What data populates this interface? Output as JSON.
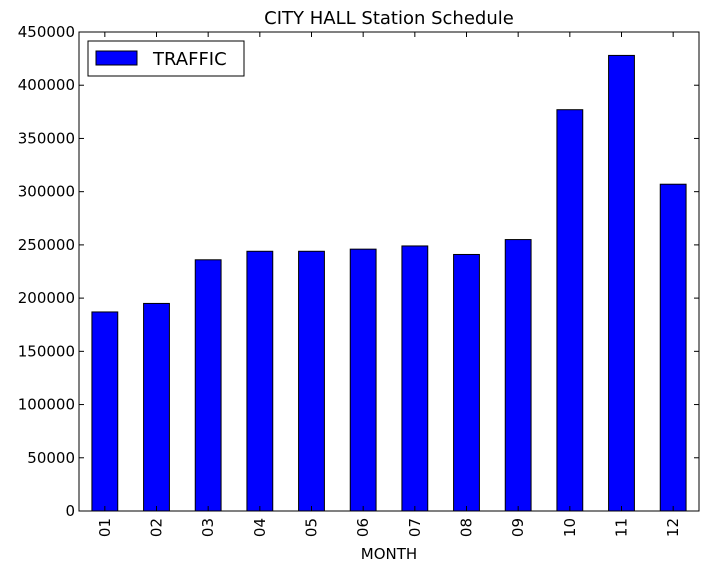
{
  "chart_data": {
    "type": "bar",
    "title": "CITY HALL Station Schedule",
    "xlabel": "MONTH",
    "ylabel": "",
    "categories": [
      "01",
      "02",
      "03",
      "04",
      "05",
      "06",
      "07",
      "08",
      "09",
      "10",
      "11",
      "12"
    ],
    "series": [
      {
        "name": "TRAFFIC",
        "color": "#0000ff",
        "values": [
          187000,
          195000,
          236000,
          244000,
          244000,
          246000,
          249000,
          241000,
          255000,
          377000,
          428000,
          307000
        ]
      }
    ],
    "ylim": [
      0,
      450000
    ],
    "yticks": [
      0,
      50000,
      100000,
      150000,
      200000,
      250000,
      300000,
      350000,
      400000,
      450000
    ],
    "ytick_labels": [
      "0",
      "50000",
      "100000",
      "150000",
      "200000",
      "250000",
      "300000",
      "350000",
      "400000",
      "450000"
    ],
    "grid": false,
    "legend_position": "top-left"
  }
}
